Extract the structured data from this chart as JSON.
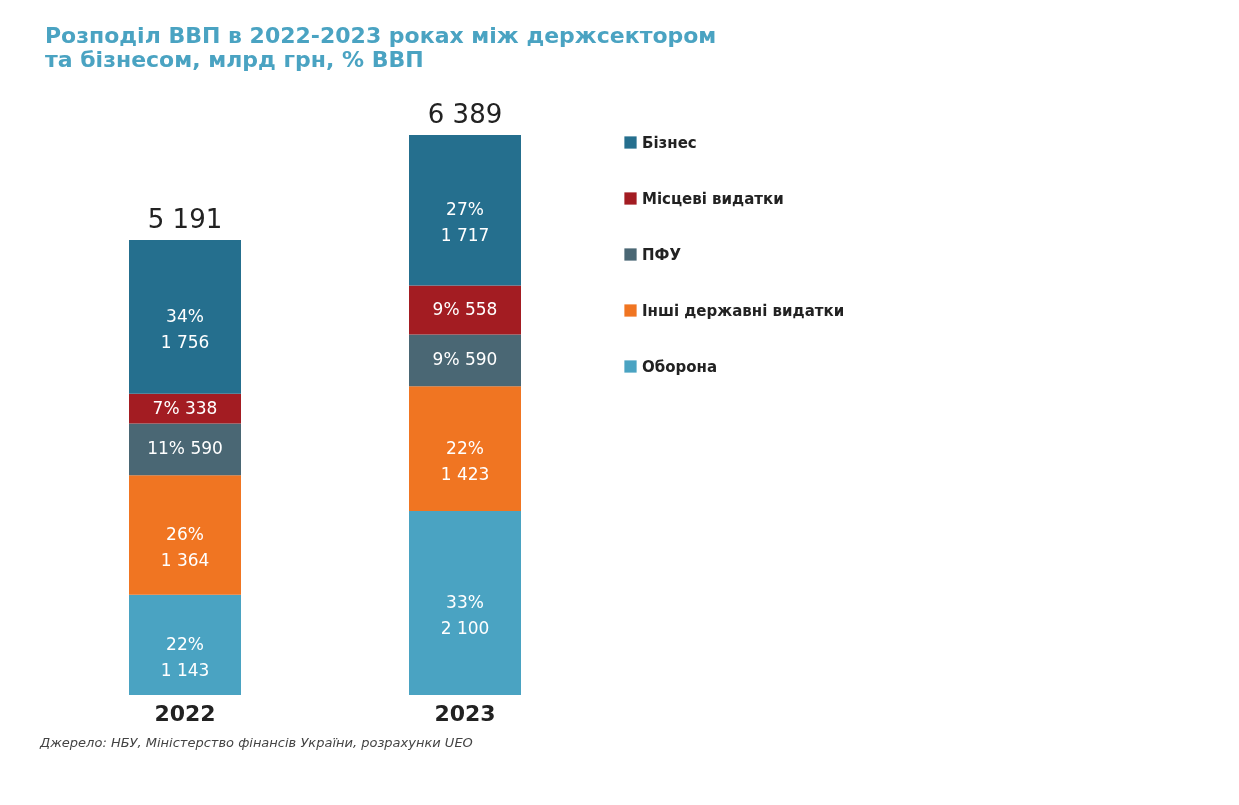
{
  "chart_data": {
    "type": "bar",
    "title": "Розподіл ВВП в 2022-2023 роках між держсектором\nта бізнесом, млрд грн, % ВВП",
    "categories": [
      "2022",
      "2023"
    ],
    "stacked": true,
    "legend": "right",
    "series": [
      {
        "name": "Оборона",
        "color": "#4aa3c2",
        "values": [
          1143,
          2100
        ],
        "value_labels": [
          "22%\n1 143",
          "33%\n2 100"
        ]
      },
      {
        "name": "Інші державні видатки",
        "color": "#f07522",
        "values": [
          1364,
          1423
        ],
        "value_labels": [
          "26%\n1 364",
          "22%\n1 423"
        ]
      },
      {
        "name": "ПФУ",
        "color": "#4a6774",
        "values": [
          590,
          590
        ],
        "value_labels": [
          "11%   590",
          "9%     590"
        ]
      },
      {
        "name": "Місцеві видатки",
        "color": "#a31c22",
        "values": [
          338,
          558
        ],
        "value_labels": [
          "7%   338",
          "9%     558"
        ]
      },
      {
        "name": "Бізнес",
        "color": "#256f8e",
        "values": [
          1756,
          1717
        ],
        "value_labels": [
          "34%\n1 756",
          "27%\n1 717"
        ]
      }
    ],
    "totals": [
      "5 191",
      "6 389"
    ],
    "annotations": [
      "Джерело: НБУ, Міністерство фінансів України, розрахунки UEO"
    ]
  }
}
